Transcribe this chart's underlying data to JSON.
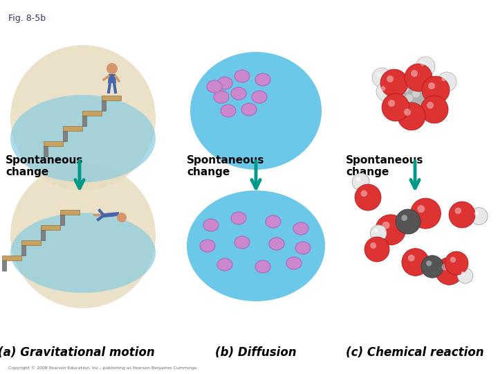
{
  "fig_label": "Fig. 8-5b",
  "background_color": "#ffffff",
  "title_fontsize": 9,
  "label_fontsize": 12,
  "spont_fontsize": 11,
  "copyright_text": "Copyright © 2008 Pearson Education, Inc., publishing as Pearson Benjamin Cummings.",
  "panel_labels": [
    "(a) Gravitational motion",
    "(b) Diffusion",
    "(c) Chemical reaction"
  ],
  "arrow_color": "#009988",
  "circle_color": "#6cc8e8",
  "dot_color": "#cc88cc"
}
